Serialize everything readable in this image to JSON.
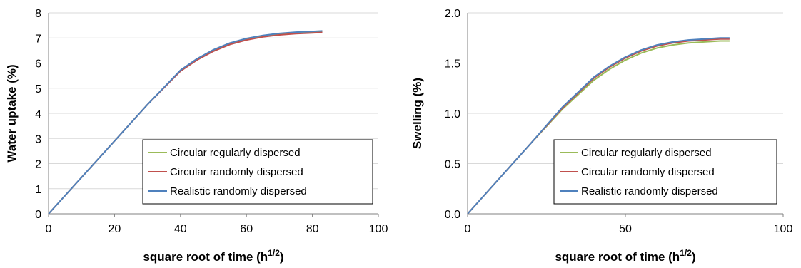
{
  "chart_data": [
    {
      "type": "line",
      "xlabel": "square root of time (h",
      "xlabel_sup": "1/2",
      "xlabel_end": ")",
      "ylabel": "Water uptake (%)",
      "xlim": [
        0,
        100
      ],
      "ylim": [
        0,
        8
      ],
      "xticks": [
        "0",
        "20",
        "40",
        "60",
        "80",
        "100"
      ],
      "yticks": [
        "0",
        "1",
        "2",
        "3",
        "4",
        "5",
        "6",
        "7",
        "8"
      ],
      "grid": "horizontal",
      "legend": "bottom-right",
      "series": [
        {
          "name": "Circular regularly dispersed",
          "color": "#9BBB59",
          "x": [
            0,
            10,
            20,
            30,
            40,
            45,
            50,
            55,
            60,
            65,
            70,
            75,
            80,
            83
          ],
          "y": [
            0,
            1.45,
            2.9,
            4.35,
            5.7,
            6.15,
            6.5,
            6.78,
            6.97,
            7.08,
            7.16,
            7.21,
            7.24,
            7.25
          ]
        },
        {
          "name": "Circular randomly dispersed",
          "color": "#C0504D",
          "x": [
            0,
            10,
            20,
            30,
            40,
            45,
            50,
            55,
            60,
            65,
            70,
            75,
            80,
            83
          ],
          "y": [
            0,
            1.45,
            2.9,
            4.35,
            5.68,
            6.12,
            6.47,
            6.74,
            6.92,
            7.04,
            7.12,
            7.17,
            7.2,
            7.22
          ]
        },
        {
          "name": "Realistic randomly dispersed",
          "color": "#4F81BD",
          "x": [
            0,
            10,
            20,
            30,
            40,
            45,
            50,
            55,
            60,
            65,
            70,
            75,
            80,
            83
          ],
          "y": [
            0,
            1.45,
            2.9,
            4.35,
            5.72,
            6.17,
            6.53,
            6.8,
            6.98,
            7.1,
            7.18,
            7.23,
            7.26,
            7.28
          ]
        }
      ]
    },
    {
      "type": "line",
      "xlabel": "square root of time (h",
      "xlabel_sup": "1/2",
      "xlabel_end": ")",
      "ylabel": "Swelling (%)",
      "xlim": [
        0,
        100
      ],
      "ylim": [
        0,
        2
      ],
      "xticks": [
        "0",
        "50",
        "100"
      ],
      "yticks": [
        "0.0",
        "0.5",
        "1.0",
        "1.5",
        "2.0"
      ],
      "grid": "horizontal",
      "legend": "bottom-right",
      "series": [
        {
          "name": "Circular regularly dispersed",
          "color": "#9BBB59",
          "x": [
            0,
            10,
            20,
            30,
            40,
            45,
            50,
            55,
            60,
            65,
            70,
            75,
            80,
            83
          ],
          "y": [
            0,
            0.35,
            0.7,
            1.04,
            1.33,
            1.44,
            1.53,
            1.6,
            1.65,
            1.68,
            1.7,
            1.71,
            1.72,
            1.72
          ]
        },
        {
          "name": "Circular randomly dispersed",
          "color": "#C0504D",
          "x": [
            0,
            10,
            20,
            30,
            40,
            45,
            50,
            55,
            60,
            65,
            70,
            75,
            80,
            83
          ],
          "y": [
            0,
            0.35,
            0.7,
            1.05,
            1.35,
            1.46,
            1.55,
            1.62,
            1.67,
            1.7,
            1.72,
            1.73,
            1.74,
            1.74
          ]
        },
        {
          "name": "Realistic randomly dispersed",
          "color": "#4F81BD",
          "x": [
            0,
            10,
            20,
            30,
            40,
            45,
            50,
            55,
            60,
            65,
            70,
            75,
            80,
            83
          ],
          "y": [
            0,
            0.35,
            0.7,
            1.06,
            1.36,
            1.47,
            1.56,
            1.63,
            1.68,
            1.71,
            1.73,
            1.74,
            1.75,
            1.75
          ]
        }
      ]
    }
  ]
}
